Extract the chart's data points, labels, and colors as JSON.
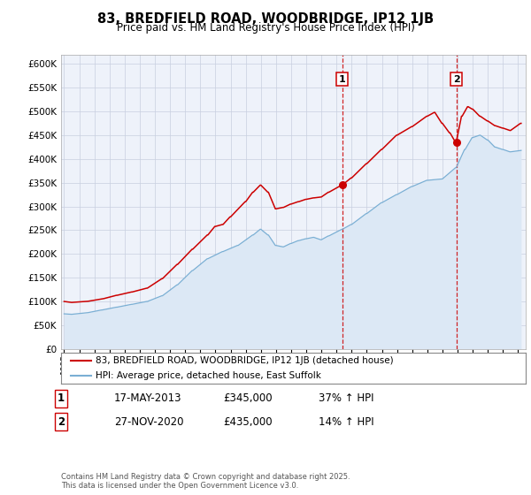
{
  "title": "83, BREDFIELD ROAD, WOODBRIDGE, IP12 1JB",
  "subtitle": "Price paid vs. HM Land Registry's House Price Index (HPI)",
  "legend_label_red": "83, BREDFIELD ROAD, WOODBRIDGE, IP12 1JB (detached house)",
  "legend_label_blue": "HPI: Average price, detached house, East Suffolk",
  "sale1_date": "17-MAY-2013",
  "sale1_price": "£345,000",
  "sale1_hpi": "37% ↑ HPI",
  "sale1_year": 2013.38,
  "sale1_value": 345000,
  "sale2_date": "27-NOV-2020",
  "sale2_price": "£435,000",
  "sale2_hpi": "14% ↑ HPI",
  "sale2_year": 2020.91,
  "sale2_value": 435000,
  "red_color": "#cc0000",
  "blue_color": "#7aafd4",
  "fill_blue_color": "#dce8f5",
  "background_color": "#eef2fa",
  "grid_color": "#c8cfe0",
  "ylim": [
    0,
    620000
  ],
  "xlim_start": 1994.8,
  "xlim_end": 2025.5,
  "footer": "Contains HM Land Registry data © Crown copyright and database right 2025.\nThis data is licensed under the Open Government Licence v3.0.",
  "yticks": [
    0,
    50000,
    100000,
    150000,
    200000,
    250000,
    300000,
    350000,
    400000,
    450000,
    500000,
    550000,
    600000
  ]
}
